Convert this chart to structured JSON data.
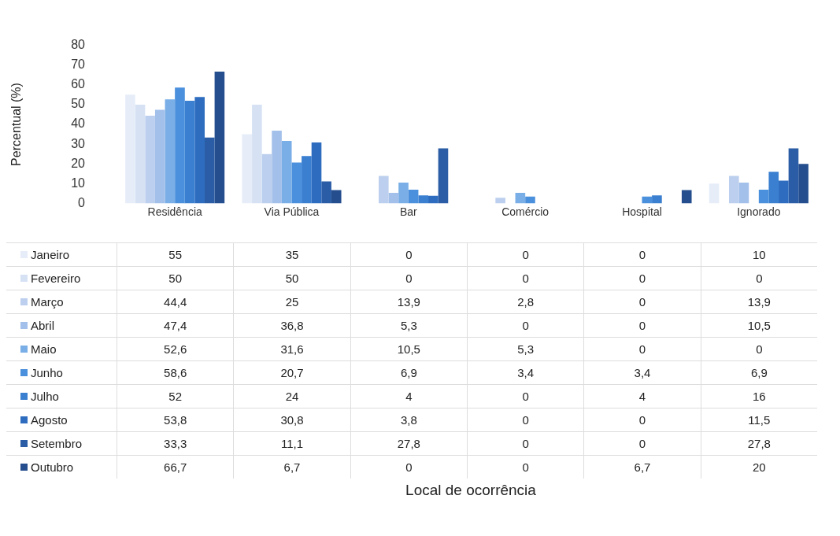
{
  "chart_data": {
    "type": "bar",
    "ylabel": "Percentual (%)",
    "annotations": [
      "Local de ocorrência"
    ],
    "categories": [
      "Residência",
      "Via Pública",
      "Bar",
      "Comércio",
      "Hospital",
      "Ignorado"
    ],
    "ylim": [
      0,
      80
    ],
    "yticks": [
      0,
      10,
      20,
      30,
      40,
      50,
      60,
      70,
      80
    ],
    "grid": false,
    "legend": "bottom",
    "series": [
      {
        "name": "Janeiro",
        "color": "#e6edf8",
        "values": [
          55,
          35,
          0,
          0,
          0,
          10
        ],
        "value_labels": [
          "55",
          "35",
          "0",
          "0",
          "0",
          "10"
        ]
      },
      {
        "name": "Fevereiro",
        "color": "#d6e2f4",
        "values": [
          50,
          50,
          0,
          0,
          0,
          0
        ],
        "value_labels": [
          "50",
          "50",
          "0",
          "0",
          "0",
          "0"
        ]
      },
      {
        "name": "Março",
        "color": "#bccfee",
        "values": [
          44.4,
          25,
          13.9,
          2.8,
          0,
          13.9
        ],
        "value_labels": [
          "44,4",
          "25",
          "13,9",
          "2,8",
          "0",
          "13,9"
        ]
      },
      {
        "name": "Abril",
        "color": "#a3c0ea",
        "values": [
          47.4,
          36.8,
          5.3,
          0,
          0,
          10.5
        ],
        "value_labels": [
          "47,4",
          "36,8",
          "5,3",
          "0",
          "0",
          "10,5"
        ]
      },
      {
        "name": "Maio",
        "color": "#79aee6",
        "values": [
          52.6,
          31.6,
          10.5,
          5.3,
          0,
          0
        ],
        "value_labels": [
          "52,6",
          "31,6",
          "10,5",
          "5,3",
          "0",
          "0"
        ]
      },
      {
        "name": "Junho",
        "color": "#4a90dc",
        "values": [
          58.6,
          20.7,
          6.9,
          3.4,
          3.4,
          6.9
        ],
        "value_labels": [
          "58,6",
          "20,7",
          "6,9",
          "3,4",
          "3,4",
          "6,9"
        ]
      },
      {
        "name": "Julho",
        "color": "#3a7fd0",
        "values": [
          52,
          24,
          4,
          0,
          4,
          16
        ],
        "value_labels": [
          "52",
          "24",
          "4",
          "0",
          "4",
          "16"
        ]
      },
      {
        "name": "Agosto",
        "color": "#2d6cbf",
        "values": [
          53.8,
          30.8,
          3.8,
          0,
          0,
          11.5
        ],
        "value_labels": [
          "53,8",
          "30,8",
          "3,8",
          "0",
          "0",
          "11,5"
        ]
      },
      {
        "name": "Setembro",
        "color": "#2a5da6",
        "values": [
          33.3,
          11.1,
          27.8,
          0,
          0,
          27.8
        ],
        "value_labels": [
          "33,3",
          "11,1",
          "27,8",
          "0",
          "0",
          "27,8"
        ]
      },
      {
        "name": "Outubro",
        "color": "#254e8e",
        "values": [
          66.7,
          6.7,
          0,
          0,
          6.7,
          20
        ],
        "value_labels": [
          "66,7",
          "6,7",
          "0",
          "0",
          "6,7",
          "20"
        ]
      }
    ]
  }
}
